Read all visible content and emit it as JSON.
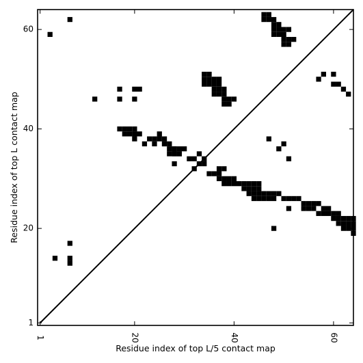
{
  "chart_data": {
    "type": "heatmap",
    "title": "",
    "xlabel": "Residue index of top L/5 contact map",
    "ylabel": "Residue index of top L contact map",
    "xlim": [
      0.5,
      64
    ],
    "ylim": [
      0.5,
      64
    ],
    "xticks": [
      1,
      20,
      40,
      60
    ],
    "yticks": [
      1,
      20,
      40,
      60
    ],
    "grid": false,
    "diagonal_line": [
      [
        1,
        1
      ],
      [
        64,
        64
      ]
    ],
    "cell_color": "#000000",
    "cells_lower_triangle": [
      [
        17,
        40
      ],
      [
        18,
        40
      ],
      [
        19,
        40
      ],
      [
        20,
        40
      ],
      [
        18,
        39
      ],
      [
        19,
        39
      ],
      [
        20,
        39
      ],
      [
        21,
        39
      ],
      [
        23,
        38
      ],
      [
        24,
        38
      ],
      [
        25,
        38
      ],
      [
        22,
        37
      ],
      [
        24,
        37
      ],
      [
        26,
        37
      ],
      [
        28,
        36
      ],
      [
        29,
        36
      ],
      [
        30,
        36
      ],
      [
        28,
        35
      ],
      [
        29,
        35
      ],
      [
        33,
        35
      ],
      [
        31,
        34
      ],
      [
        32,
        34
      ],
      [
        34,
        34
      ],
      [
        28,
        33
      ],
      [
        33,
        33
      ],
      [
        34,
        33
      ],
      [
        32,
        32
      ],
      [
        37,
        32
      ],
      [
        38,
        32
      ],
      [
        35,
        31
      ],
      [
        36,
        31
      ],
      [
        37,
        31
      ],
      [
        37,
        30
      ],
      [
        38,
        30
      ],
      [
        39,
        30
      ],
      [
        40,
        30
      ],
      [
        38,
        29
      ],
      [
        39,
        29
      ],
      [
        40,
        29
      ],
      [
        41,
        29
      ],
      [
        42,
        29
      ],
      [
        43,
        29
      ],
      [
        44,
        29
      ],
      [
        45,
        29
      ],
      [
        42,
        28
      ],
      [
        43,
        28
      ],
      [
        44,
        28
      ],
      [
        45,
        28
      ],
      [
        43,
        27
      ],
      [
        44,
        27
      ],
      [
        45,
        27
      ],
      [
        46,
        27
      ],
      [
        47,
        27
      ],
      [
        48,
        27
      ],
      [
        49,
        27
      ],
      [
        44,
        26
      ],
      [
        45,
        26
      ],
      [
        46,
        26
      ],
      [
        47,
        26
      ],
      [
        48,
        26
      ],
      [
        50,
        26
      ],
      [
        51,
        26
      ],
      [
        52,
        26
      ],
      [
        53,
        26
      ],
      [
        54,
        25
      ],
      [
        55,
        25
      ],
      [
        56,
        25
      ],
      [
        57,
        25
      ],
      [
        51,
        24
      ],
      [
        54,
        24
      ],
      [
        55,
        24
      ],
      [
        56,
        24
      ],
      [
        58,
        24
      ],
      [
        59,
        24
      ],
      [
        57,
        23
      ],
      [
        58,
        23
      ],
      [
        59,
        23
      ],
      [
        60,
        23
      ],
      [
        61,
        23
      ],
      [
        60,
        22
      ],
      [
        61,
        22
      ],
      [
        62,
        22
      ],
      [
        63,
        22
      ],
      [
        64,
        22
      ],
      [
        61,
        21
      ],
      [
        62,
        21
      ],
      [
        63,
        21
      ],
      [
        64,
        21
      ],
      [
        62,
        20
      ],
      [
        63,
        20
      ],
      [
        64,
        20
      ],
      [
        64,
        19
      ]
    ],
    "cells_upper_triangle": [
      [
        3,
        59
      ],
      [
        7,
        62
      ],
      [
        12,
        46
      ],
      [
        17,
        48
      ],
      [
        17,
        46
      ],
      [
        20,
        48
      ],
      [
        21,
        48
      ],
      [
        20,
        46
      ],
      [
        20,
        39
      ],
      [
        20,
        38
      ],
      [
        25,
        39
      ],
      [
        26,
        38
      ],
      [
        26,
        37
      ],
      [
        27,
        37
      ],
      [
        27,
        36
      ],
      [
        28,
        36
      ],
      [
        27,
        35
      ],
      [
        28,
        35
      ],
      [
        29,
        35
      ],
      [
        34,
        51
      ],
      [
        35,
        51
      ],
      [
        34,
        50
      ],
      [
        35,
        50
      ],
      [
        36,
        50
      ],
      [
        37,
        50
      ],
      [
        34,
        49
      ],
      [
        35,
        49
      ],
      [
        36,
        49
      ],
      [
        37,
        49
      ],
      [
        36,
        48
      ],
      [
        37,
        48
      ],
      [
        38,
        48
      ],
      [
        36,
        47
      ],
      [
        37,
        47
      ],
      [
        38,
        47
      ],
      [
        38,
        46
      ],
      [
        39,
        46
      ],
      [
        40,
        46
      ],
      [
        38,
        45
      ],
      [
        39,
        45
      ],
      [
        46,
        63
      ],
      [
        47,
        63
      ],
      [
        46,
        62
      ],
      [
        47,
        62
      ],
      [
        48,
        62
      ],
      [
        48,
        61
      ],
      [
        49,
        61
      ],
      [
        48,
        60
      ],
      [
        49,
        60
      ],
      [
        50,
        60
      ],
      [
        51,
        60
      ],
      [
        48,
        59
      ],
      [
        49,
        59
      ],
      [
        50,
        59
      ],
      [
        50,
        58
      ],
      [
        51,
        58
      ],
      [
        52,
        58
      ],
      [
        50,
        57
      ],
      [
        51,
        57
      ],
      [
        47,
        38
      ],
      [
        49,
        36
      ],
      [
        50,
        37
      ],
      [
        51,
        34
      ],
      [
        48,
        20
      ],
      [
        57,
        50
      ],
      [
        58,
        51
      ],
      [
        60,
        51
      ],
      [
        60,
        49
      ],
      [
        61,
        49
      ],
      [
        62,
        48
      ],
      [
        63,
        47
      ],
      [
        7,
        17
      ],
      [
        4,
        14
      ],
      [
        7,
        14
      ],
      [
        7,
        13
      ]
    ]
  }
}
